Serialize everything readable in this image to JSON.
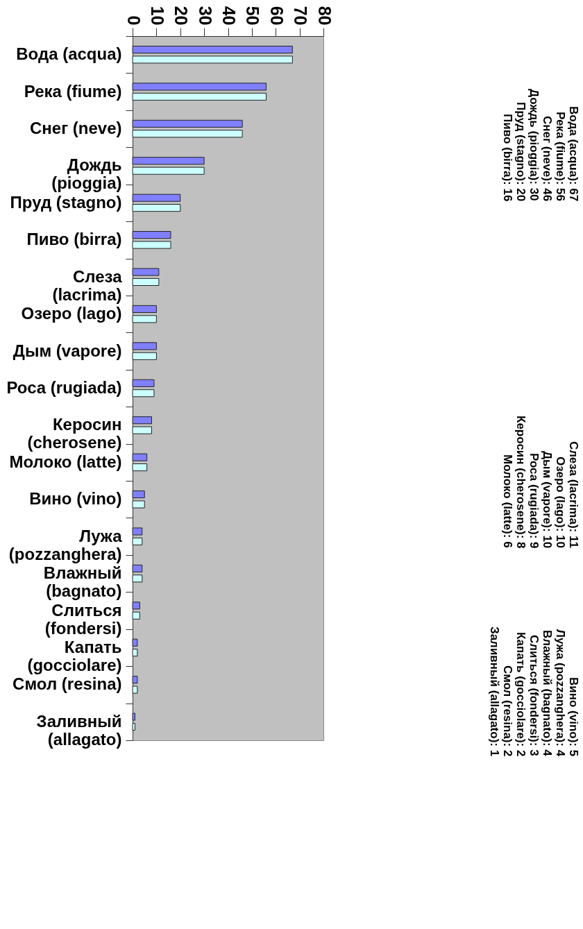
{
  "chart_data": {
    "type": "bar",
    "orientation": "horizontal",
    "categories": [
      "Вода (acqua)",
      "Река (fiume)",
      "Снег (neve)",
      "Дождь (pioggia)",
      "Пруд (stagno)",
      "Пиво (birra)",
      "Слеза (lacrima)",
      "Озеро (lago)",
      "Дым (vapore)",
      "Роса (rugiada)",
      "Керосин (cherosene)",
      "Молоко (latte)",
      "Вино (vino)",
      "Лужа (pozzanghera)",
      "Влажный (bagnato)",
      "Слиться (fondersi)",
      "Капать (gocciolare)",
      "Смол (resina)",
      "Заливный (allagato)"
    ],
    "series": [
      {
        "color": "#8080ff",
        "values": [
          67,
          56,
          46,
          30,
          20,
          16,
          11,
          10,
          10,
          9,
          8,
          6,
          5,
          4,
          4,
          3,
          2,
          2,
          1
        ]
      },
      {
        "color": "#ccffff",
        "values": [
          67,
          56,
          46,
          30,
          20,
          16,
          11,
          10,
          10,
          9,
          8,
          6,
          5,
          4,
          4,
          3,
          2,
          2,
          1
        ]
      }
    ],
    "xlim": [
      0,
      80
    ],
    "xticks": [
      0,
      10,
      20,
      30,
      40,
      50,
      60,
      70,
      80
    ],
    "annotations": [
      "Вода (acqua): 67",
      "Река (fiume): 56",
      "Снег (neve): 46",
      "Дождь (pioggia): 30",
      "Пруд (stagno): 20",
      "Пиво (birra): 16",
      "Слеза (lacrima): 11",
      "Озеро (lago): 10",
      "Дым (vapore): 10",
      "Роса (rugiada): 9",
      "Керосин (cherosene): 8",
      "Молоко (latte): 6",
      "Вино (vino): 5",
      "Лужа (pozzanghera): 4",
      "Влажный (bagnato): 4",
      "Слиться (fondersi): 3",
      "Капать (gocciolare): 2",
      "Смол (resina): 2",
      "Заливный (allagato): 1"
    ]
  }
}
